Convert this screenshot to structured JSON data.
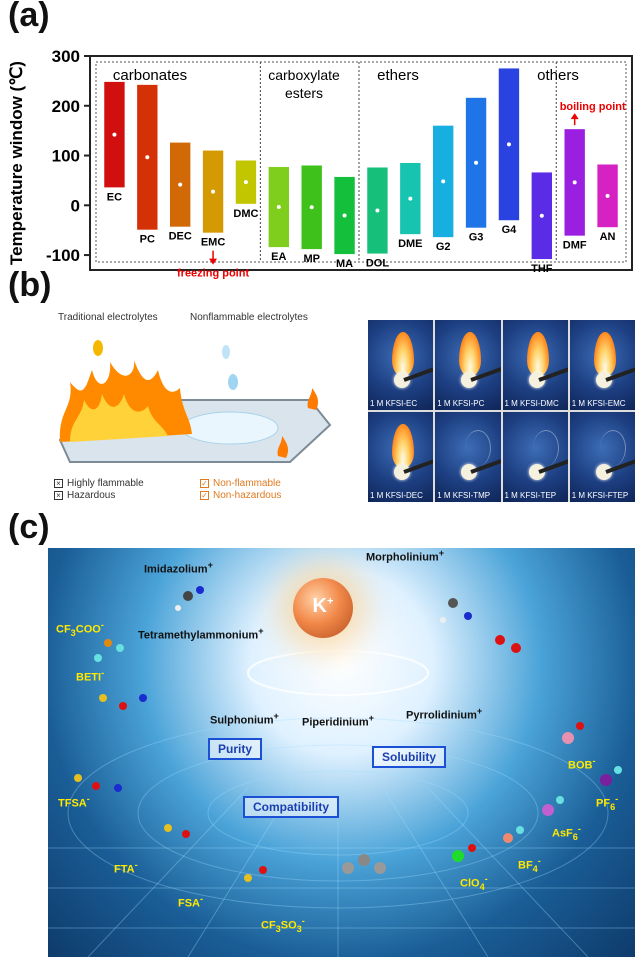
{
  "panels": {
    "a": "(a)",
    "b": "(b)",
    "c": "(c)"
  },
  "chart_data": {
    "type": "bar",
    "ylabel": "Temperature window (℃)",
    "ylim": [
      -130,
      300
    ],
    "yticks": [
      300,
      200,
      100,
      0,
      -100
    ],
    "groups": [
      {
        "name": "carbonates",
        "names": [
          "EC",
          "PC",
          "DEC",
          "EMC",
          "DMC"
        ]
      },
      {
        "name": "carboxylate esters",
        "names": [
          "EA",
          "MP",
          "MA"
        ]
      },
      {
        "name": "ethers",
        "names": [
          "DOL",
          "DME",
          "G2",
          "G3",
          "G4",
          "THF"
        ]
      },
      {
        "name": "others",
        "names": [
          "DMF",
          "AN"
        ]
      }
    ],
    "categories": [
      "EC",
      "PC",
      "DEC",
      "EMC",
      "DMC",
      "EA",
      "MP",
      "MA",
      "DOL",
      "DME",
      "G2",
      "G3",
      "G4",
      "THF",
      "DMF",
      "AN"
    ],
    "lows": [
      36,
      -49,
      -43,
      -55,
      3,
      -84,
      -88,
      -98,
      -97,
      -58,
      -64,
      -45,
      -30,
      -108,
      -61,
      -44
    ],
    "highs": [
      248,
      242,
      126,
      110,
      90,
      77,
      80,
      57,
      76,
      85,
      160,
      216,
      275,
      66,
      153,
      82
    ],
    "colors": [
      "#d10f0f",
      "#d43206",
      "#d16a06",
      "#d39a04",
      "#c2c600",
      "#7fcd1d",
      "#3ec11b",
      "#14bf3c",
      "#16c07a",
      "#17c4b0",
      "#17aee0",
      "#1f74e8",
      "#2a42e0",
      "#5a2ce6",
      "#9a1fe0",
      "#d622c2"
    ],
    "annotations": {
      "freezing": "freezing point",
      "boiling": "boiling point"
    }
  },
  "panel_b": {
    "caption_left": "Traditional electrolytes",
    "caption_right": "Nonflammable electrolytes",
    "legend_left": [
      "Highly flammable",
      "Hazardous"
    ],
    "legend_right": [
      "Non-flammable",
      "Non-hazardous"
    ],
    "photos": [
      "1 M KFSI-EC",
      "1 M KFSI-PC",
      "1 M KFSI-DMC",
      "1 M KFSI-EMC",
      "1 M KFSI-DEC",
      "1 M KFSI-TMP",
      "1 M KFSI-TEP",
      "1 M KFSI-FTEP"
    ],
    "legend_left_color": "#333333",
    "legend_right_color": "#e07a1f"
  },
  "panel_c": {
    "k_symbol": "K",
    "k_charge": "+",
    "cations": [
      {
        "name": "Imidazolium",
        "sup": "+"
      },
      {
        "name": "Morpholinium",
        "sup": "+"
      },
      {
        "name": "Tetramethylammonium",
        "sup": "+"
      },
      {
        "name": "Sulphonium",
        "sup": "+"
      },
      {
        "name": "Piperidinium",
        "sup": "+"
      },
      {
        "name": "Pyrrolidinium",
        "sup": "+"
      }
    ],
    "boxes": [
      "Purity",
      "Solubility",
      "Compatibility"
    ],
    "anions": {
      "cf3coo": {
        "a": "CF",
        "sub1": "3",
        "b": "COO",
        "sup": "-"
      },
      "beti": {
        "a": "BETI",
        "sup": "-"
      },
      "tfsa": {
        "a": "TFSA",
        "sup": "-"
      },
      "fta": {
        "a": "FTA",
        "sup": "-"
      },
      "fsa": {
        "a": "FSA",
        "sup": "-"
      },
      "cf3so3": {
        "a": "CF",
        "sub1": "3",
        "b": "SO",
        "sub2": "3",
        "sup": "-"
      },
      "clo4": {
        "a": "ClO",
        "sub1": "4",
        "sup": "-"
      },
      "bf4": {
        "a": "BF",
        "sub1": "4",
        "sup": "-"
      },
      "asf6": {
        "a": "AsF",
        "sub1": "6",
        "sup": "-"
      },
      "pf6": {
        "a": "PF",
        "sub1": "6",
        "sup": "-"
      },
      "bob": {
        "a": "BOB",
        "sup": "-"
      }
    }
  }
}
